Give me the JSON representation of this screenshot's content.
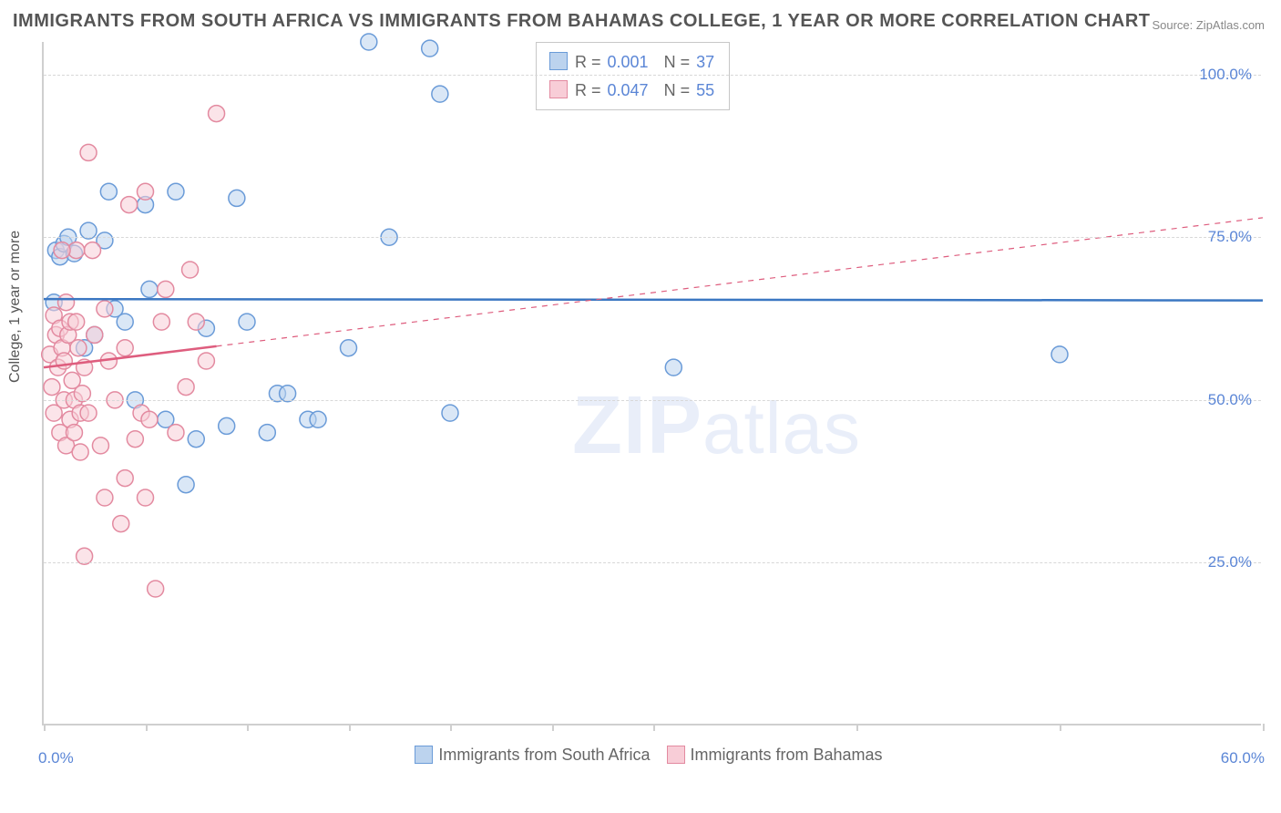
{
  "title": "IMMIGRANTS FROM SOUTH AFRICA VS IMMIGRANTS FROM BAHAMAS COLLEGE, 1 YEAR OR MORE CORRELATION CHART",
  "source": "Source: ZipAtlas.com",
  "watermark": "ZIPatlas",
  "ylabel": "College, 1 year or more",
  "chart": {
    "type": "scatter",
    "background_color": "#ffffff",
    "grid_color": "#d8d8d8",
    "axis_color": "#cfcfcf",
    "xlim": [
      0,
      60
    ],
    "ylim": [
      0,
      105
    ],
    "xticks": [
      0,
      5,
      10,
      15,
      20,
      25,
      30,
      40,
      50,
      60
    ],
    "xtick_labels": {
      "0": "0.0%",
      "60": "60.0%"
    },
    "yticks": [
      25,
      50,
      75,
      100
    ],
    "ytick_labels": {
      "25": "25.0%",
      "50": "50.0%",
      "75": "75.0%",
      "100": "100.0%"
    },
    "tick_label_color": "#5b86d6",
    "tick_label_fontsize": 17,
    "marker_radius": 9,
    "marker_opacity": 0.55,
    "series": [
      {
        "name": "Immigrants from South Africa",
        "color_fill": "#bcd3ee",
        "color_stroke": "#6a9bd8",
        "trend": {
          "y_start": 65.5,
          "y_end": 65.3,
          "solid_until_x": 60,
          "color": "#3b77c2",
          "width": 2.5
        },
        "points": [
          [
            0.5,
            65
          ],
          [
            0.6,
            73
          ],
          [
            0.8,
            72
          ],
          [
            1.0,
            74
          ],
          [
            1.2,
            75
          ],
          [
            1.5,
            72.5
          ],
          [
            2.0,
            58
          ],
          [
            2.2,
            76
          ],
          [
            2.5,
            60
          ],
          [
            3.0,
            74.5
          ],
          [
            3.2,
            82
          ],
          [
            3.5,
            64
          ],
          [
            4.0,
            62
          ],
          [
            4.5,
            50
          ],
          [
            5.0,
            80
          ],
          [
            5.2,
            67
          ],
          [
            6.0,
            47
          ],
          [
            6.5,
            82
          ],
          [
            7.0,
            37
          ],
          [
            7.5,
            44
          ],
          [
            8.0,
            61
          ],
          [
            9.0,
            46
          ],
          [
            9.5,
            81
          ],
          [
            10.0,
            62
          ],
          [
            11.0,
            45
          ],
          [
            11.5,
            51
          ],
          [
            12.0,
            51
          ],
          [
            13.0,
            47
          ],
          [
            13.5,
            47
          ],
          [
            15.0,
            58
          ],
          [
            16.0,
            105
          ],
          [
            17.0,
            75
          ],
          [
            19.0,
            104
          ],
          [
            19.5,
            97
          ],
          [
            20.0,
            48
          ],
          [
            31.0,
            55
          ],
          [
            50.0,
            57
          ]
        ]
      },
      {
        "name": "Immigrants from Bahamas",
        "color_fill": "#f8cdd7",
        "color_stroke": "#e38aa0",
        "trend": {
          "y_start": 55,
          "y_end": 78,
          "solid_until_x": 8.5,
          "color": "#de5d7e",
          "width": 2.5
        },
        "points": [
          [
            0.3,
            57
          ],
          [
            0.4,
            52
          ],
          [
            0.5,
            48
          ],
          [
            0.5,
            63
          ],
          [
            0.6,
            60
          ],
          [
            0.7,
            55
          ],
          [
            0.8,
            61
          ],
          [
            0.8,
            45
          ],
          [
            0.9,
            58
          ],
          [
            1.0,
            56
          ],
          [
            1.0,
            50
          ],
          [
            1.1,
            65
          ],
          [
            1.1,
            43
          ],
          [
            1.2,
            60
          ],
          [
            1.3,
            47
          ],
          [
            1.3,
            62
          ],
          [
            1.4,
            53
          ],
          [
            1.5,
            50
          ],
          [
            1.5,
            45
          ],
          [
            1.6,
            62
          ],
          [
            1.7,
            58
          ],
          [
            1.8,
            42
          ],
          [
            1.8,
            48
          ],
          [
            1.9,
            51
          ],
          [
            2.0,
            26
          ],
          [
            2.0,
            55
          ],
          [
            2.2,
            88
          ],
          [
            2.2,
            48
          ],
          [
            2.4,
            73
          ],
          [
            2.5,
            60
          ],
          [
            2.8,
            43
          ],
          [
            3.0,
            64
          ],
          [
            3.0,
            35
          ],
          [
            3.2,
            56
          ],
          [
            3.5,
            50
          ],
          [
            3.8,
            31
          ],
          [
            4.0,
            38
          ],
          [
            4.0,
            58
          ],
          [
            4.2,
            80
          ],
          [
            4.5,
            44
          ],
          [
            4.8,
            48
          ],
          [
            5.0,
            35
          ],
          [
            5.0,
            82
          ],
          [
            5.2,
            47
          ],
          [
            5.5,
            21
          ],
          [
            5.8,
            62
          ],
          [
            6.0,
            67
          ],
          [
            6.5,
            45
          ],
          [
            7.0,
            52
          ],
          [
            7.2,
            70
          ],
          [
            7.5,
            62
          ],
          [
            8.0,
            56
          ],
          [
            8.5,
            94
          ],
          [
            1.6,
            73
          ],
          [
            0.9,
            73
          ]
        ]
      }
    ],
    "legend_stats": [
      {
        "series": 0,
        "R": "0.001",
        "N": "37"
      },
      {
        "series": 1,
        "R": "0.047",
        "N": "55"
      }
    ]
  },
  "legend_bottom": [
    {
      "label": "Immigrants from South Africa",
      "fill": "#bcd3ee",
      "stroke": "#6a9bd8"
    },
    {
      "label": "Immigrants from Bahamas",
      "fill": "#f8cdd7",
      "stroke": "#e38aa0"
    }
  ]
}
